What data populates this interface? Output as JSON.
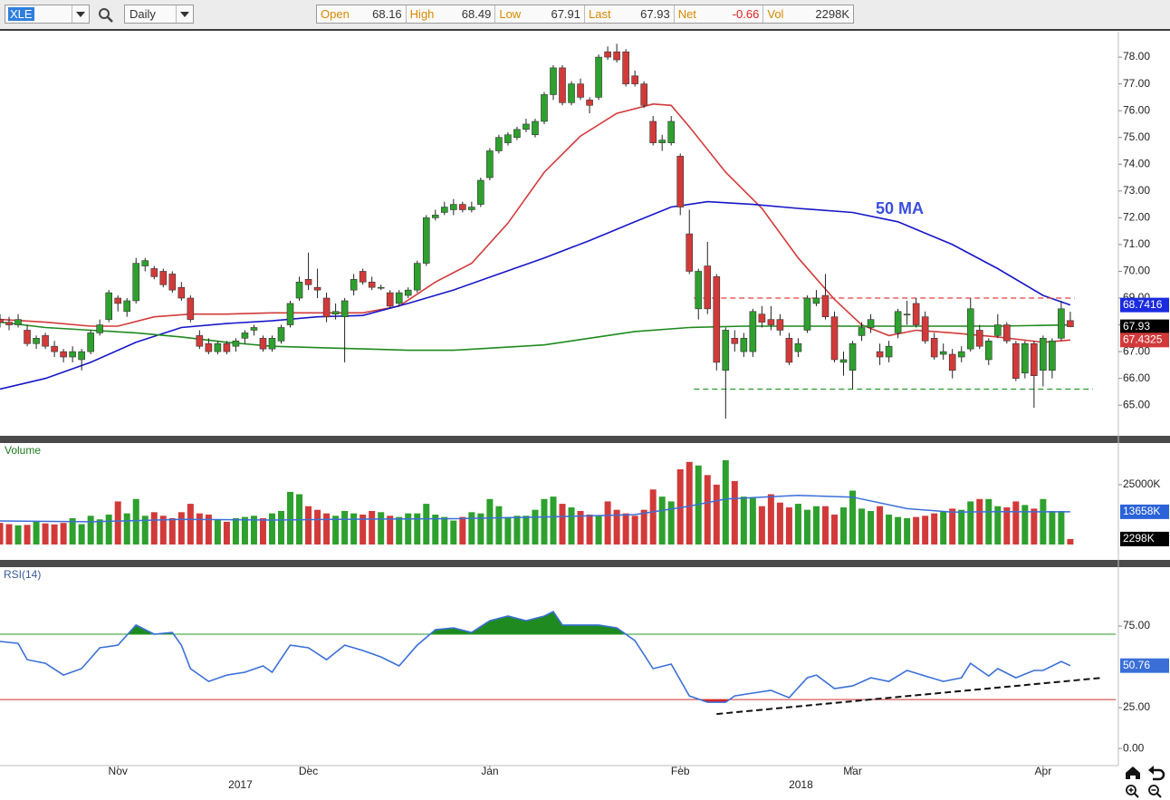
{
  "toolbar": {
    "symbol": "XLE",
    "interval": "Daily",
    "fields": [
      {
        "label": "Open",
        "value": "68.16"
      },
      {
        "label": "High",
        "value": "68.49"
      },
      {
        "label": "Low",
        "value": "67.91"
      },
      {
        "label": "Last",
        "value": "67.93"
      },
      {
        "label": "Net",
        "value": "-0.66"
      },
      {
        "label": "Vol",
        "value": "2298K"
      }
    ]
  },
  "chart_data": [
    {
      "type": "candlestick",
      "up_color": "#2ea02e",
      "down_color": "#d23a3a",
      "xlim": [
        0,
        123
      ],
      "ylim": [
        63.89,
        78.95
      ],
      "yticks": [
        {
          "value": 65,
          "label": "65.00"
        },
        {
          "value": 66,
          "label": "66.00"
        },
        {
          "value": 67,
          "label": "67.00"
        },
        {
          "value": 68,
          "label": "68.00"
        },
        {
          "value": 69,
          "label": "69.00"
        },
        {
          "value": 70,
          "label": "70.00"
        },
        {
          "value": 71,
          "label": "71.00"
        },
        {
          "value": 72,
          "label": "72.00"
        },
        {
          "value": 73,
          "label": "73.00"
        },
        {
          "value": 74,
          "label": "74.00"
        },
        {
          "value": 75,
          "label": "75.00"
        },
        {
          "value": 76,
          "label": "76.00"
        },
        {
          "value": 77,
          "label": "77.00"
        },
        {
          "value": 78,
          "label": "78.00"
        }
      ],
      "open": [
        68.2,
        68.1,
        68.0,
        67.8,
        67.3,
        67.6,
        67.2,
        67.0,
        66.8,
        66.7,
        67.0,
        67.7,
        68.2,
        69.0,
        68.5,
        68.9,
        70.2,
        70.1,
        70.0,
        69.9,
        69.4,
        69.0,
        67.6,
        67.3,
        67.0,
        67.3,
        67.2,
        67.5,
        67.8,
        67.5,
        67.1,
        67.4,
        68.0,
        69.0,
        69.7,
        69.4,
        69.0,
        68.4,
        68.3,
        69.3,
        70.0,
        69.6,
        69.4,
        69.2,
        68.8,
        69.1,
        69.3,
        70.3,
        72.0,
        72.2,
        72.3,
        72.5,
        72.3,
        72.5,
        73.5,
        74.5,
        74.8,
        75.0,
        75.3,
        75.1,
        75.6,
        76.6,
        77.6,
        76.3,
        77.0,
        76.4,
        76.5,
        78.2,
        78.2,
        78.2,
        77.3,
        77.0,
        75.6,
        74.8,
        74.8,
        74.3,
        71.4,
        68.6,
        70.2,
        69.8,
        66.3,
        67.5,
        67.0,
        67.0,
        68.4,
        68.2,
        68.2,
        67.5,
        67.0,
        67.8,
        68.8,
        69.1,
        68.3,
        66.6,
        66.3,
        67.6,
        67.9,
        67.0,
        66.8,
        67.7,
        68.4,
        68.8,
        68.3,
        67.5,
        66.9,
        66.9,
        66.8,
        67.1,
        67.8,
        66.7,
        67.6,
        68.0,
        67.3,
        66.2,
        67.3,
        66.3,
        66.3,
        67.5,
        68.16
      ],
      "high": [
        68.4,
        68.3,
        68.4,
        68.0,
        67.6,
        67.7,
        67.4,
        67.1,
        67.2,
        67.1,
        67.8,
        68.2,
        69.3,
        69.1,
        69.0,
        70.5,
        70.5,
        70.2,
        70.1,
        70.0,
        69.6,
        69.1,
        67.8,
        67.5,
        67.4,
        67.4,
        67.5,
        67.8,
        68.0,
        67.6,
        67.6,
        68.0,
        68.9,
        69.8,
        70.7,
        70.1,
        69.2,
        68.8,
        69.0,
        69.9,
        70.1,
        69.8,
        69.5,
        69.3,
        69.3,
        69.4,
        70.4,
        72.1,
        72.3,
        72.6,
        72.7,
        72.6,
        72.6,
        73.5,
        74.6,
        75.1,
        75.2,
        75.4,
        75.7,
        75.7,
        76.7,
        77.7,
        77.7,
        77.1,
        77.2,
        76.5,
        78.1,
        78.4,
        78.5,
        78.3,
        77.5,
        77.1,
        75.8,
        75.1,
        75.8,
        74.4,
        72.3,
        70.1,
        71.1,
        69.9,
        67.9,
        67.8,
        67.7,
        68.6,
        68.7,
        68.7,
        68.4,
        67.7,
        67.5,
        69.1,
        69.3,
        69.9,
        68.5,
        67.0,
        67.4,
        68.1,
        68.4,
        67.3,
        67.4,
        68.6,
        68.9,
        69.0,
        68.5,
        67.7,
        67.3,
        67.1,
        67.2,
        69.0,
        68.0,
        67.5,
        68.4,
        68.1,
        67.4,
        67.4,
        67.4,
        67.6,
        67.5,
        68.9,
        68.49
      ],
      "low": [
        67.9,
        67.8,
        67.9,
        67.2,
        67.1,
        67.1,
        66.8,
        66.6,
        66.6,
        66.3,
        66.9,
        67.6,
        68.1,
        68.5,
        68.3,
        68.8,
        70.0,
        69.7,
        69.4,
        69.2,
        68.9,
        68.1,
        67.1,
        66.9,
        66.9,
        66.9,
        67.0,
        67.3,
        67.6,
        67.0,
        67.0,
        67.3,
        67.9,
        68.9,
        69.3,
        69.0,
        68.1,
        68.2,
        66.6,
        69.1,
        69.5,
        69.3,
        69.3,
        68.6,
        68.7,
        69.0,
        69.2,
        70.2,
        71.9,
        72.1,
        72.1,
        72.2,
        72.2,
        72.4,
        73.4,
        74.4,
        74.7,
        74.9,
        75.2,
        75.0,
        75.5,
        76.4,
        76.2,
        76.2,
        76.4,
        75.9,
        76.4,
        77.9,
        77.8,
        76.9,
        76.9,
        76.1,
        74.7,
        74.5,
        74.7,
        72.1,
        69.9,
        68.2,
        68.4,
        66.3,
        64.5,
        67.0,
        66.8,
        66.8,
        67.9,
        67.8,
        67.6,
        66.5,
        66.8,
        67.7,
        68.7,
        68.2,
        66.6,
        66.1,
        65.6,
        67.4,
        67.7,
        66.5,
        66.6,
        67.5,
        68.0,
        67.9,
        67.3,
        66.7,
        66.7,
        66.0,
        66.6,
        67.0,
        67.1,
        66.5,
        67.5,
        67.3,
        65.9,
        66.0,
        64.9,
        65.7,
        66.0,
        67.4,
        67.91
      ],
      "close": [
        68.1,
        68.0,
        68.2,
        67.3,
        67.5,
        67.2,
        67.0,
        66.8,
        67.0,
        67.0,
        67.7,
        68.0,
        69.2,
        68.8,
        68.9,
        70.3,
        70.4,
        69.8,
        69.5,
        69.3,
        69.0,
        68.2,
        67.2,
        67.0,
        67.3,
        67.0,
        67.4,
        67.7,
        67.9,
        67.1,
        67.5,
        67.9,
        68.8,
        69.6,
        69.5,
        69.3,
        68.3,
        68.5,
        68.9,
        69.7,
        69.6,
        69.4,
        69.4,
        68.7,
        69.2,
        69.3,
        70.3,
        72.0,
        72.1,
        72.4,
        72.5,
        72.3,
        72.4,
        73.4,
        74.5,
        75.0,
        75.1,
        75.3,
        75.5,
        75.6,
        76.6,
        77.6,
        76.3,
        77.0,
        76.5,
        76.2,
        78.0,
        78.0,
        77.9,
        77.0,
        77.0,
        76.2,
        74.8,
        74.9,
        75.6,
        72.4,
        70.0,
        70.0,
        68.6,
        66.6,
        67.8,
        67.3,
        67.5,
        68.5,
        68.1,
        68.0,
        67.8,
        66.6,
        67.3,
        69.0,
        69.0,
        68.3,
        66.7,
        66.7,
        67.3,
        67.9,
        68.2,
        66.8,
        67.2,
        68.5,
        68.4,
        68.0,
        67.4,
        66.8,
        67.0,
        66.3,
        67.0,
        68.6,
        67.2,
        67.4,
        68.0,
        67.4,
        66.0,
        67.3,
        66.1,
        67.5,
        67.4,
        68.6,
        67.93
      ],
      "lines": [
        {
          "color": "#d23a3a",
          "x": [
            0,
            5,
            10,
            13,
            17,
            21,
            25,
            30,
            35,
            40,
            44,
            48,
            52,
            56,
            60,
            64,
            68,
            72,
            74,
            76,
            80,
            84,
            88,
            92,
            95,
            98,
            101,
            105,
            110,
            115,
            118
          ],
          "values": [
            68.2,
            68.1,
            67.95,
            67.95,
            68.3,
            68.4,
            68.4,
            68.45,
            68.45,
            68.45,
            68.7,
            69.6,
            70.3,
            71.8,
            73.7,
            75.05,
            75.9,
            76.25,
            76.2,
            75.4,
            73.7,
            72.35,
            70.5,
            68.95,
            68.0,
            67.6,
            67.8,
            67.7,
            67.55,
            67.35,
            67.4325
          ]
        },
        {
          "name": "50 MA",
          "color": "#1616c8",
          "x": [
            0,
            5,
            10,
            15,
            20,
            25,
            30,
            35,
            40,
            45,
            50,
            55,
            60,
            65,
            70,
            74,
            78,
            83,
            88,
            94,
            99,
            105,
            110,
            115,
            118
          ],
          "values": [
            65.6,
            66.0,
            66.6,
            67.35,
            67.9,
            68.05,
            68.15,
            68.3,
            68.35,
            68.8,
            69.3,
            69.9,
            70.5,
            71.15,
            71.85,
            72.4,
            72.6,
            72.5,
            72.35,
            72.2,
            71.85,
            71.0,
            70.1,
            69.1,
            68.7416
          ]
        },
        {
          "color": "#1e8a1e",
          "x": [
            0,
            5,
            10,
            15,
            20,
            25,
            30,
            35,
            40,
            45,
            50,
            55,
            60,
            65,
            70,
            76,
            82,
            90,
            100,
            110,
            118
          ],
          "values": [
            68.1,
            67.9,
            67.8,
            67.7,
            67.55,
            67.35,
            67.2,
            67.15,
            67.1,
            67.05,
            67.05,
            67.15,
            67.25,
            67.5,
            67.75,
            67.9,
            67.95,
            67.95,
            67.95,
            67.95,
            68.0
          ]
        }
      ],
      "levels": [
        {
          "value": 69.0,
          "color": "#e04040",
          "x": [
            76.5,
            118.5
          ]
        },
        {
          "value": 65.6,
          "color": "#2a9a2a",
          "x": [
            76.5,
            120.5
          ]
        }
      ],
      "last_labels": [
        {
          "value": 68.7416,
          "label": "68.7416",
          "color": "#1a2be0"
        },
        {
          "value": 67.93,
          "label": "67.93",
          "color": "#000000"
        },
        {
          "value": 67.4325,
          "label": "67.4325",
          "color": "#d23a3a"
        }
      ]
    },
    {
      "type": "bar",
      "title": "Volume",
      "xlim": [
        0,
        123
      ],
      "ylim": [
        0,
        42000
      ],
      "yticks": [
        {
          "value": 25000,
          "label": "25000K"
        }
      ],
      "values": [
        9000,
        8500,
        8000,
        8200,
        9500,
        8800,
        8400,
        9000,
        11000,
        8500,
        12000,
        10500,
        12500,
        18000,
        13000,
        19000,
        12000,
        13500,
        12000,
        11000,
        13500,
        17000,
        13000,
        12500,
        10500,
        9500,
        11000,
        11500,
        12000,
        11000,
        13000,
        14000,
        22000,
        21000,
        16000,
        14500,
        13000,
        12000,
        14000,
        13000,
        12500,
        14000,
        13500,
        12000,
        11500,
        13000,
        13000,
        17000,
        12500,
        11500,
        10000,
        11500,
        13500,
        13000,
        19000,
        16000,
        11500,
        12000,
        12000,
        14500,
        19000,
        20000,
        17000,
        15500,
        14000,
        12500,
        12000,
        18000,
        14500,
        13000,
        12000,
        14500,
        23000,
        20000,
        18000,
        31400,
        34500,
        33000,
        29000,
        25000,
        35200,
        26500,
        20000,
        19500,
        16000,
        21000,
        17500,
        15500,
        17000,
        14500,
        16000,
        16000,
        12500,
        15500,
        22500,
        15000,
        14000,
        16000,
        12500,
        11500,
        11000,
        11500,
        12000,
        13000,
        14000,
        15000,
        14500,
        18000,
        19000,
        19000,
        16000,
        15500,
        18000,
        16500,
        15000,
        19000,
        14000,
        14000,
        2298
      ],
      "ma": {
        "color": "#3a6fd8",
        "x": [
          0,
          10,
          20,
          30,
          40,
          50,
          60,
          70,
          76,
          80,
          88,
          94,
          100,
          105,
          110,
          118
        ],
        "values": [
          9850,
          9500,
          10500,
          10200,
          10600,
          10800,
          11500,
          12500,
          16000,
          19000,
          20500,
          19800,
          15000,
          13500,
          13700,
          13658
        ]
      },
      "last_labels": [
        {
          "value": 13658,
          "label": "13658K",
          "color": "#2b63d9"
        },
        {
          "value": 2298,
          "label": "2298K",
          "color": "#000000"
        }
      ]
    },
    {
      "type": "line",
      "title": "RSI(14)",
      "color": "#3a6fd8",
      "xlim": [
        0,
        123
      ],
      "ylim": [
        -10.5,
        110
      ],
      "yticks": [
        {
          "value": 0,
          "label": "0.00"
        },
        {
          "value": 25,
          "label": "25.00"
        },
        {
          "value": 75,
          "label": "75.00"
        }
      ],
      "xticks": [
        {
          "value": 13,
          "label": "Nov"
        },
        {
          "value": 34,
          "label": "Dec"
        },
        {
          "value": 54,
          "label": "Jan"
        },
        {
          "value": 75,
          "label": "Feb"
        },
        {
          "value": 94,
          "label": "Mar"
        },
        {
          "value": 115,
          "label": "Apr"
        }
      ],
      "year_ticks": [
        {
          "value": 26.5,
          "label": "2017"
        },
        {
          "value": 88.3,
          "label": "2018"
        }
      ],
      "x": [
        0,
        2,
        3,
        5,
        7,
        9,
        11,
        13,
        15,
        17,
        19,
        20,
        21,
        23,
        25,
        27,
        29,
        30,
        32,
        34,
        36,
        38,
        40,
        42,
        44,
        46,
        48,
        50,
        52,
        54,
        56,
        58,
        60,
        61,
        62,
        64,
        66,
        68,
        70,
        72,
        74,
        76,
        78,
        80,
        81,
        83,
        85,
        87,
        89,
        90,
        92,
        94,
        96,
        98,
        100,
        102,
        104,
        106,
        107,
        109,
        110,
        112,
        114,
        115,
        117,
        118
      ],
      "values": [
        65.6,
        64.4,
        54.4,
        52.2,
        45.0,
        48.9,
        61.7,
        63.3,
        75.6,
        70.0,
        71.1,
        63.3,
        48.9,
        41.1,
        45.0,
        46.7,
        50.6,
        46.7,
        63.3,
        61.7,
        54.4,
        63.3,
        60.0,
        56.1,
        50.6,
        63.3,
        72.8,
        73.9,
        71.1,
        78.3,
        81.1,
        78.3,
        81.1,
        83.9,
        75.6,
        75.6,
        75.6,
        73.9,
        66.1,
        48.9,
        51.7,
        32.2,
        28.3,
        28.3,
        32.2,
        33.9,
        35.6,
        31.1,
        43.3,
        45.0,
        36.7,
        38.3,
        43.3,
        41.1,
        47.8,
        44.4,
        41.1,
        43.3,
        52.2,
        44.4,
        48.9,
        43.3,
        47.8,
        47.8,
        53.3,
        50.76
      ],
      "levels": [
        {
          "value": 70,
          "color": "#2a9a2a",
          "fill": "#1f8a1f"
        },
        {
          "value": 30,
          "color": "#d03030",
          "fill": "#e02020"
        }
      ],
      "trendline": {
        "x": [
          79,
          121.5
        ],
        "values": [
          21.1,
          43.3
        ]
      },
      "last_labels": [
        {
          "value": 50.76,
          "label": "50.76",
          "color": "#3a6fd8"
        }
      ]
    }
  ]
}
